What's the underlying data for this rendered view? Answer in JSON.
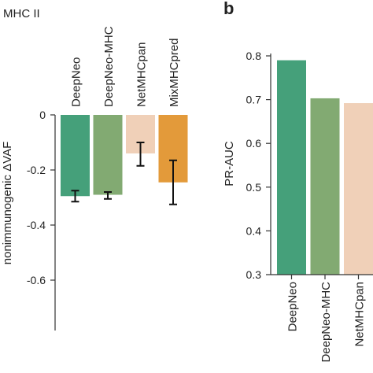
{
  "panel_label_b": "b",
  "chart_data": [
    {
      "type": "bar",
      "subtitle": "MHC II",
      "ylabel": "nonimmunogenic ΔVAF",
      "categories": [
        "DeepNeo",
        "DeepNeo-MHC",
        "NetMHCpan",
        "MixMHCpred"
      ],
      "values": [
        -0.295,
        -0.29,
        -0.14,
        -0.245
      ],
      "error_bars": [
        [
          -0.315,
          -0.275
        ],
        [
          -0.305,
          -0.28
        ],
        [
          -0.185,
          -0.1
        ],
        [
          -0.325,
          -0.165
        ]
      ],
      "ylim": [
        -0.79,
        0.0
      ],
      "yticks": [
        0,
        -0.2,
        -0.4,
        -0.6
      ],
      "ytick_labels": [
        "0",
        "-0.2",
        "-0.4",
        "-0.6"
      ],
      "colors": [
        "#45A07A",
        "#82AA72",
        "#F0D0B8",
        "#E39A3A"
      ]
    },
    {
      "type": "bar",
      "ylabel": "PR-AUC",
      "categories": [
        "DeepNeo",
        "DeepNeo-MHC",
        "NetMHCpan"
      ],
      "values": [
        0.79,
        0.703,
        0.692
      ],
      "ylim": [
        0.3,
        0.8
      ],
      "yticks": [
        0.8,
        0.7,
        0.6,
        0.5,
        0.4,
        0.3
      ],
      "ytick_labels": [
        "0.8",
        "0.7",
        "0.6",
        "0.5",
        "0.4",
        "0.3"
      ],
      "colors": [
        "#45A07A",
        "#82AA72",
        "#F0D0B8"
      ]
    }
  ]
}
